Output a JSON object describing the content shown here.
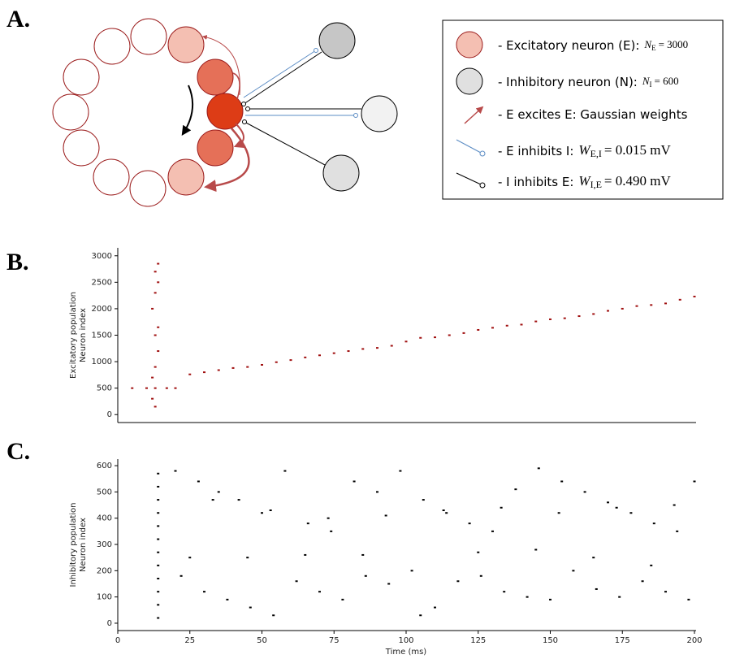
{
  "panel_labels": [
    "A.",
    "B.",
    "C."
  ],
  "legend": {
    "excitatory": {
      "text": "- Excitatory neuron (E):",
      "symbol": "N",
      "sub": "E",
      "rest": "= 3000"
    },
    "inhibitory": {
      "text": "- Inhibitory neuron (N):",
      "symbol": "N",
      "sub": "I",
      "rest": "= 600"
    },
    "ee": {
      "text": "- E excites E: Gaussian weights"
    },
    "ei": {
      "text": "- E inhibits I:",
      "symbol": "W",
      "sub": "E,I",
      "rest": "= 0.015 mV"
    },
    "ie": {
      "text": "- I inhibits E:",
      "symbol": "W",
      "sub": "I,E",
      "rest": "= 0.490 mV"
    }
  },
  "chart_data": [
    {
      "type": "scatter",
      "ylabel": [
        "Excitatory population",
        "Neuron index"
      ],
      "color": "#a01010",
      "xlim": [
        0,
        200
      ],
      "ylim": [
        -150,
        3150
      ],
      "yticks": [
        0,
        500,
        1000,
        1500,
        2000,
        2500,
        3000
      ],
      "x": [
        13,
        12,
        13,
        14,
        13,
        14,
        12,
        13,
        14,
        13,
        14,
        12,
        13,
        5,
        10,
        17,
        20,
        25,
        30,
        35,
        40,
        45,
        50,
        55,
        60,
        65,
        70,
        75,
        80,
        85,
        90,
        95,
        100,
        105,
        110,
        115,
        120,
        125,
        130,
        135,
        140,
        145,
        150,
        155,
        160,
        165,
        170,
        175,
        180,
        185,
        190,
        195,
        200
      ],
      "values": [
        500,
        700,
        900,
        1200,
        1500,
        1650,
        2000,
        2300,
        2500,
        2700,
        2850,
        300,
        150,
        500,
        500,
        500,
        500,
        760,
        800,
        840,
        880,
        900,
        940,
        990,
        1030,
        1080,
        1120,
        1160,
        1200,
        1240,
        1260,
        1300,
        1380,
        1450,
        1460,
        1500,
        1540,
        1600,
        1640,
        1680,
        1700,
        1760,
        1800,
        1820,
        1860,
        1900,
        1960,
        2000,
        2050,
        2070,
        2100,
        2170,
        2230
      ]
    },
    {
      "type": "scatter",
      "ylabel": [
        "Inhibitory population",
        "Neuron index"
      ],
      "xlabel": "Time (ms)",
      "color": "#000000",
      "xlim": [
        0,
        200
      ],
      "ylim": [
        -28,
        625
      ],
      "xticks": [
        0,
        25,
        50,
        75,
        100,
        125,
        150,
        175,
        200
      ],
      "yticks": [
        0,
        100,
        200,
        300,
        400,
        500,
        600
      ],
      "x": [
        14,
        14,
        14,
        14,
        14,
        14,
        14,
        14,
        14,
        14,
        14,
        14,
        20,
        28,
        35,
        42,
        50,
        58,
        66,
        74,
        82,
        90,
        98,
        106,
        114,
        122,
        130,
        138,
        146,
        154,
        162,
        170,
        178,
        186,
        194,
        200,
        22,
        30,
        38,
        46,
        54,
        62,
        70,
        78,
        86,
        94,
        102,
        110,
        118,
        126,
        134,
        142,
        150,
        158,
        166,
        174,
        182,
        190,
        198,
        25,
        45,
        65,
        85,
        105,
        125,
        145,
        165,
        185,
        33,
        53,
        73,
        93,
        113,
        133,
        153,
        173,
        193
      ],
      "values": [
        20,
        70,
        120,
        170,
        220,
        270,
        320,
        370,
        420,
        470,
        520,
        570,
        580,
        540,
        500,
        470,
        420,
        580,
        380,
        350,
        540,
        500,
        580,
        470,
        420,
        380,
        350,
        510,
        590,
        540,
        500,
        460,
        420,
        380,
        350,
        540,
        180,
        120,
        90,
        60,
        30,
        160,
        120,
        90,
        180,
        150,
        200,
        60,
        160,
        180,
        120,
        100,
        90,
        200,
        130,
        100,
        160,
        120,
        90,
        250,
        250,
        260,
        260,
        30,
        270,
        280,
        250,
        220,
        470,
        430,
        400,
        410,
        430,
        440,
        420,
        440,
        450
      ]
    }
  ]
}
